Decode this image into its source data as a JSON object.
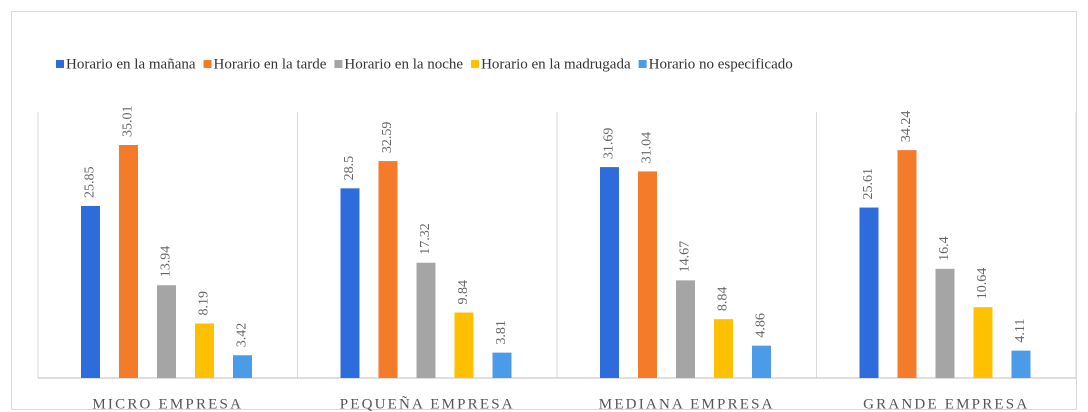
{
  "chart_data": {
    "type": "bar",
    "categories": [
      "MICRO EMPRESA",
      "PEQUEÑA EMPRESA",
      "MEDIANA EMPRESA",
      "GRANDE EMPRESA"
    ],
    "series": [
      {
        "name": "Horario en la mañana",
        "color": "#2e6cdb",
        "values": [
          25.85,
          28.5,
          31.69,
          25.61
        ]
      },
      {
        "name": "Horario en la tarde",
        "color": "#f47b29",
        "values": [
          35.01,
          32.59,
          31.04,
          34.24
        ]
      },
      {
        "name": "Horario en la noche",
        "color": "#a5a5a5",
        "values": [
          13.94,
          17.32,
          14.67,
          16.4
        ]
      },
      {
        "name": "Horario en la madrugada",
        "color": "#ffc000",
        "values": [
          8.19,
          9.84,
          8.84,
          10.64
        ]
      },
      {
        "name": "Horario no especificado",
        "color": "#4b9be8",
        "values": [
          3.42,
          3.81,
          4.86,
          4.11
        ]
      }
    ],
    "legend": "top"
  }
}
